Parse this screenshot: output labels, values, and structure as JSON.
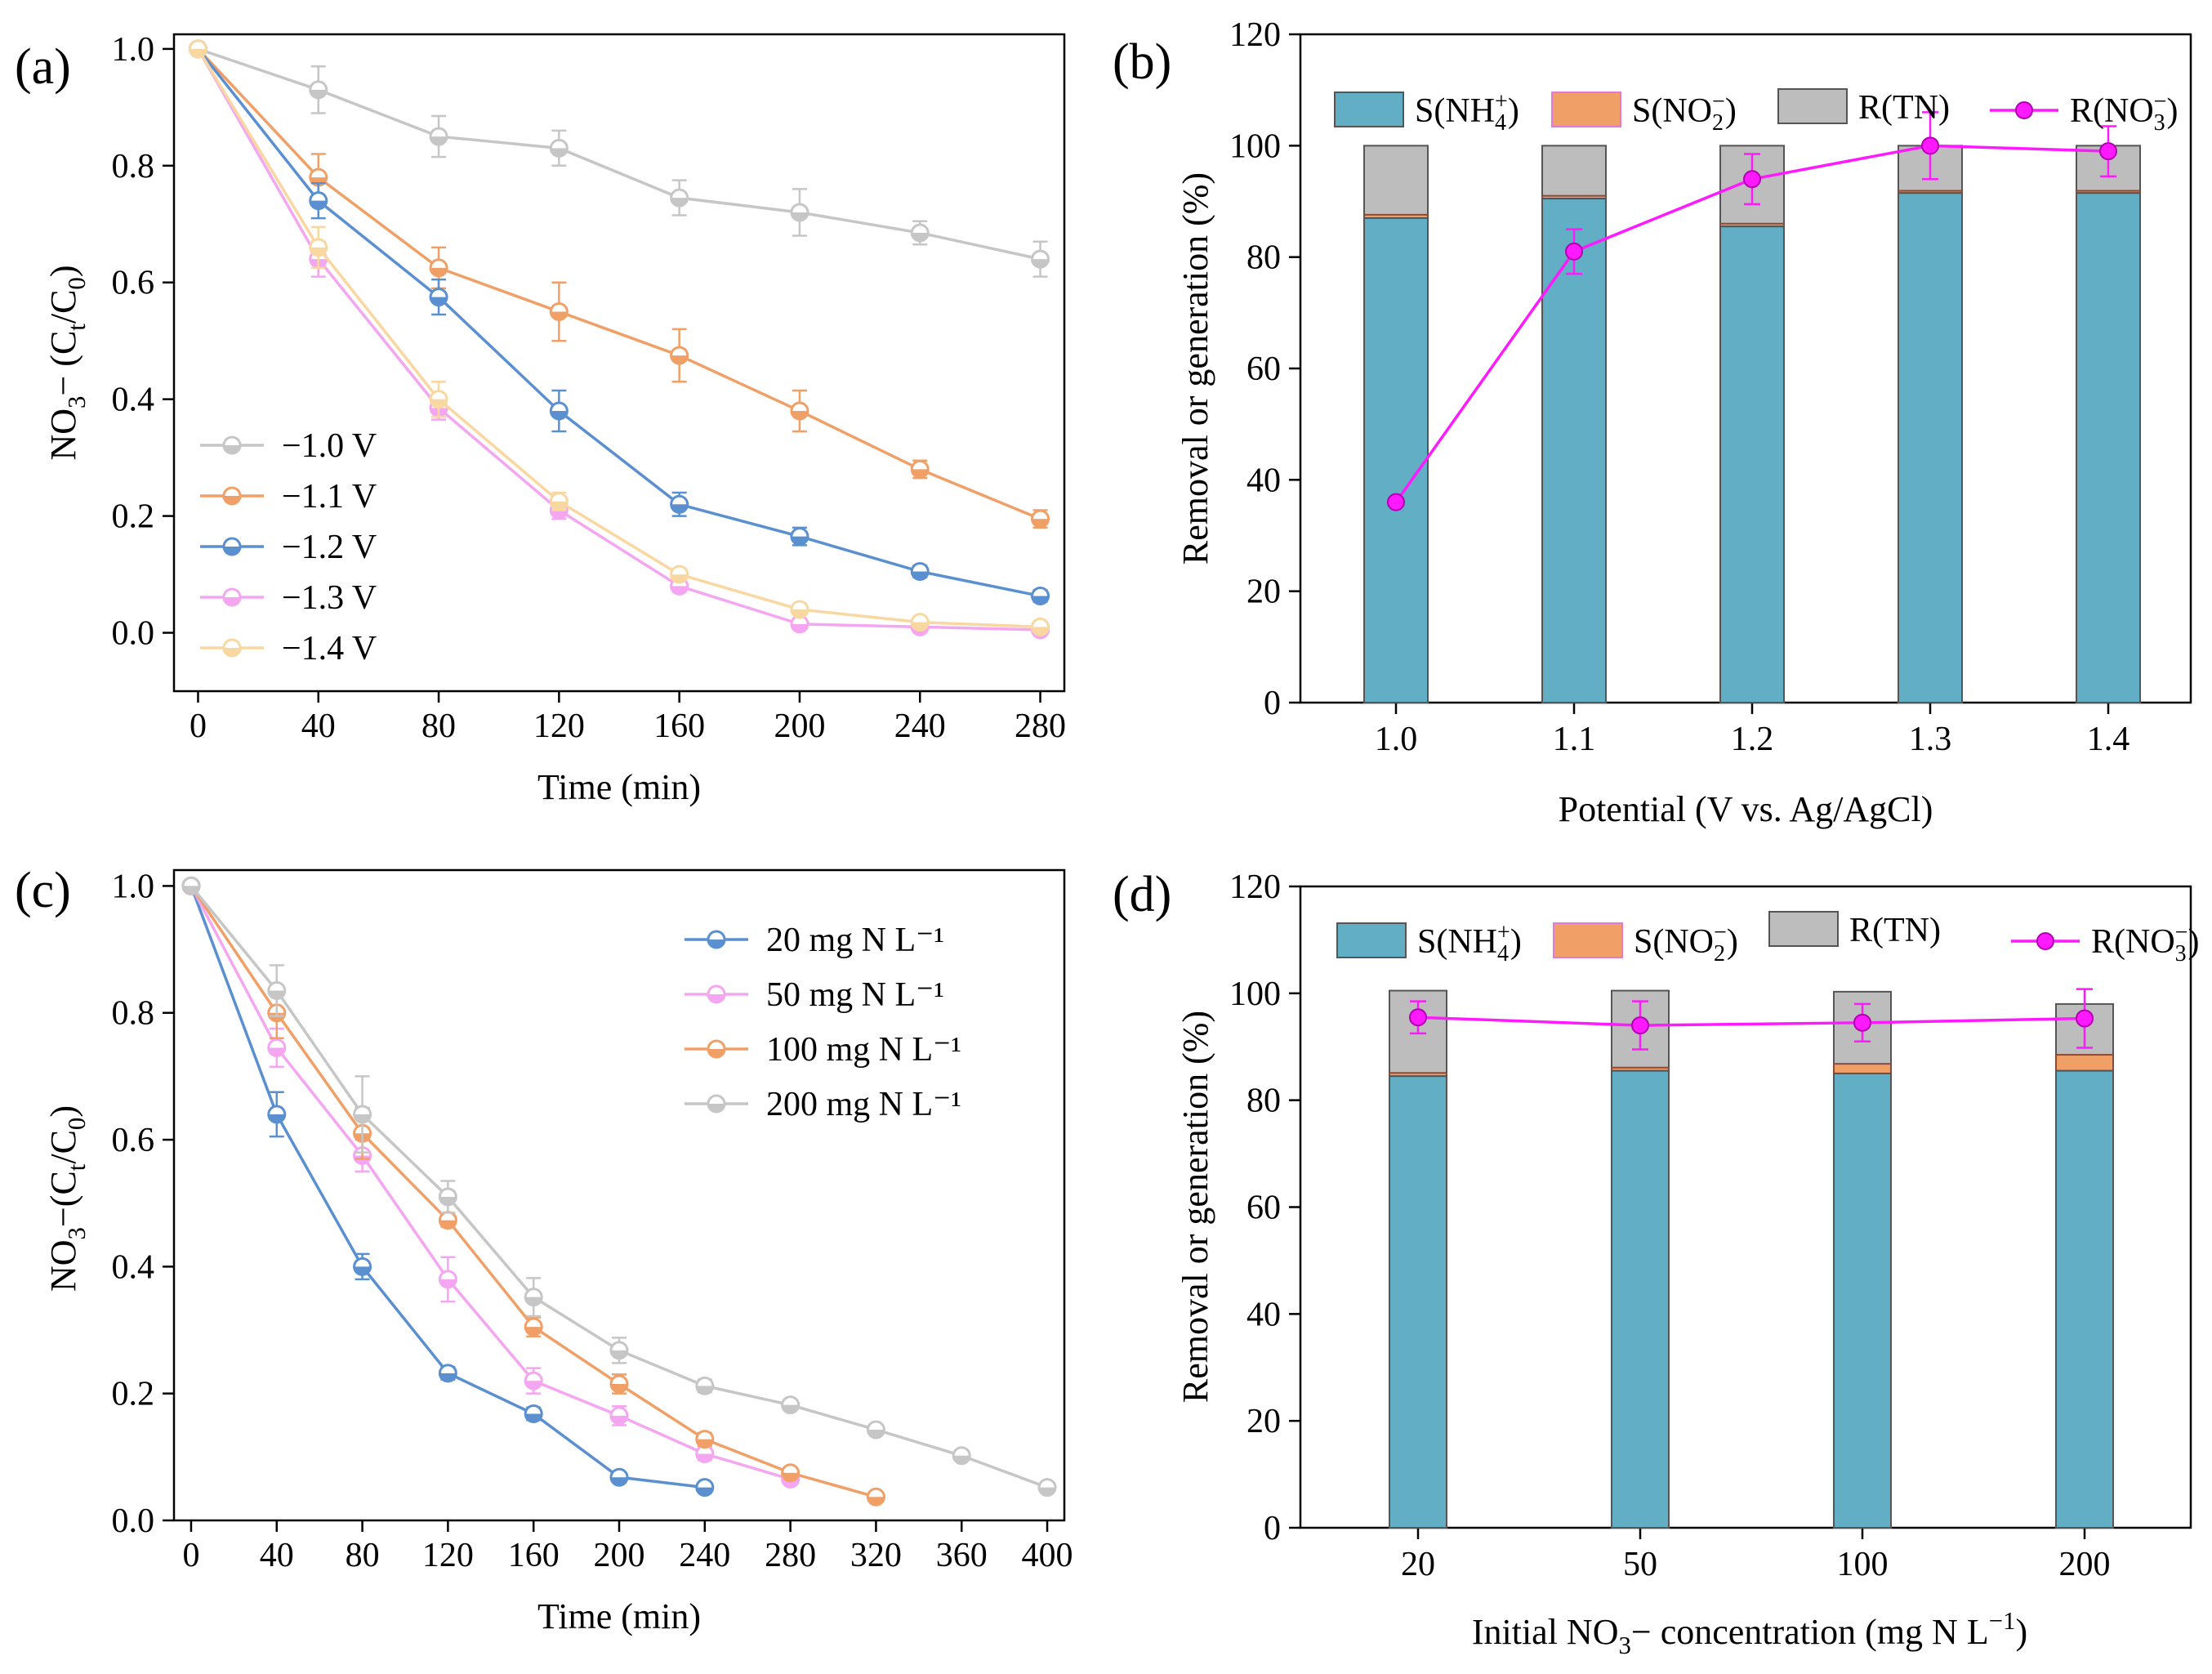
{
  "colors": {
    "gray": "#c6c6c6",
    "orange": "#f0a067",
    "blue": "#5a8fd0",
    "pink": "#f4a6f0",
    "peach": "#f9d7a0",
    "bar_nh4": "#62aec5",
    "bar_no2": "#f0a067",
    "bar_tn": "#bdbdbd",
    "line_no3": "#ff19ff"
  },
  "chart_data": [
    {
      "id": "a",
      "panel_label": "(a)",
      "type": "line",
      "xlabel": "Time (min)",
      "ylabel": "NO3⁻ (Ct/C0)",
      "xlim": [
        -8,
        288
      ],
      "ylim": [
        -0.1,
        1.025
      ],
      "xticks": [
        0,
        40,
        80,
        120,
        160,
        200,
        240,
        280
      ],
      "yticks": [
        0.0,
        0.2,
        0.4,
        0.6,
        0.8,
        1.0
      ],
      "ytick_labels": [
        "0.0",
        "0.2",
        "0.4",
        "0.6",
        "0.8",
        "1.0"
      ],
      "legend": {
        "position": "bottom-left"
      },
      "x": [
        0,
        40,
        80,
        120,
        160,
        200,
        240,
        280
      ],
      "series": [
        {
          "name": "−1.0 V",
          "color_key": "gray",
          "values": [
            1.0,
            0.93,
            0.85,
            0.83,
            0.745,
            0.72,
            0.685,
            0.64
          ],
          "err": [
            0,
            0.04,
            0.035,
            0.03,
            0.03,
            0.04,
            0.02,
            0.03
          ]
        },
        {
          "name": "−1.1 V",
          "color_key": "orange",
          "values": [
            1.0,
            0.78,
            0.625,
            0.55,
            0.475,
            0.38,
            0.28,
            0.195
          ],
          "err": [
            0,
            0.04,
            0.035,
            0.05,
            0.045,
            0.035,
            0.015,
            0.015
          ]
        },
        {
          "name": "−1.2 V",
          "color_key": "blue",
          "values": [
            1.0,
            0.74,
            0.575,
            0.38,
            0.22,
            0.165,
            0.105,
            0.063
          ],
          "err": [
            0,
            0.03,
            0.03,
            0.035,
            0.02,
            0.015,
            0.01,
            0.01
          ]
        },
        {
          "name": "−1.3 V",
          "color_key": "pink",
          "values": [
            1.0,
            0.64,
            0.385,
            0.21,
            0.08,
            0.015,
            0.01,
            0.005
          ],
          "err": [
            0,
            0.03,
            0.02,
            0.015,
            0.01,
            0.008,
            0.005,
            0.005
          ]
        },
        {
          "name": "−1.4 V",
          "color_key": "peach",
          "values": [
            1.0,
            0.66,
            0.4,
            0.225,
            0.1,
            0.04,
            0.018,
            0.01
          ],
          "err": [
            0,
            0.035,
            0.03,
            0.015,
            0.01,
            0.008,
            0.005,
            0.005
          ]
        }
      ]
    },
    {
      "id": "b",
      "panel_label": "(b)",
      "type": "bar",
      "xlabel": "Potential (V vs. Ag/AgCl)",
      "ylabel": "Removal or generation (%)",
      "ylim": [
        0,
        120
      ],
      "yticks": [
        0,
        20,
        40,
        60,
        80,
        100,
        120
      ],
      "categories": [
        "1.0",
        "1.1",
        "1.2",
        "1.3",
        "1.4"
      ],
      "legend": {
        "position": "top"
      },
      "series": [
        {
          "name": "S(NH4+)",
          "color_key": "bar_nh4",
          "values": [
            87,
            90.5,
            85.5,
            91.5,
            91.5
          ]
        },
        {
          "name": "S(NO2−)",
          "color_key": "bar_no2",
          "values": [
            0.6,
            0.5,
            0.5,
            0.4,
            0.4
          ]
        },
        {
          "name": "R(TN)",
          "color_key": "bar_tn",
          "values": [
            100,
            100,
            100,
            100,
            100
          ]
        },
        {
          "name": "R(NO3−)",
          "color_key": "line_no3",
          "values": [
            36,
            81,
            94,
            100,
            99
          ],
          "err": [
            0.5,
            4,
            4.5,
            6,
            4.5
          ]
        }
      ]
    },
    {
      "id": "c",
      "panel_label": "(c)",
      "type": "line",
      "xlabel": "Time (min)",
      "ylabel": "NO3⁻(Ct/C0)",
      "xlim": [
        -8,
        408
      ],
      "ylim": [
        0,
        1.025
      ],
      "xticks": [
        0,
        40,
        80,
        120,
        160,
        200,
        240,
        280,
        320,
        360,
        400
      ],
      "yticks": [
        0.0,
        0.2,
        0.4,
        0.6,
        0.8,
        1.0
      ],
      "ytick_labels": [
        "0.0",
        "0.2",
        "0.4",
        "0.6",
        "0.8",
        "1.0"
      ],
      "legend": {
        "position": "top-right"
      },
      "series": [
        {
          "name": "20 mg N L⁻¹",
          "color_key": "blue",
          "x": [
            0,
            40,
            80,
            120,
            160,
            200,
            240
          ],
          "values": [
            1.0,
            0.64,
            0.4,
            0.232,
            0.168,
            0.068,
            0.052
          ],
          "err": [
            0,
            0.035,
            0.02,
            0.01,
            0.01,
            0.005,
            0.005
          ]
        },
        {
          "name": "50 mg N L⁻¹",
          "color_key": "pink",
          "x": [
            0,
            40,
            80,
            120,
            160,
            200,
            240,
            280
          ],
          "values": [
            1.0,
            0.745,
            0.575,
            0.38,
            0.22,
            0.165,
            0.105,
            0.065
          ],
          "err": [
            0,
            0.03,
            0.025,
            0.035,
            0.02,
            0.015,
            0.01,
            0.005
          ]
        },
        {
          "name": "100 mg N L⁻¹",
          "color_key": "orange",
          "x": [
            0,
            40,
            80,
            120,
            160,
            200,
            240,
            280,
            320
          ],
          "values": [
            1.0,
            0.8,
            0.61,
            0.473,
            0.305,
            0.215,
            0.128,
            0.075,
            0.037
          ],
          "err": [
            0,
            0.04,
            0.04,
            0.01,
            0.015,
            0.015,
            0.01,
            0.005,
            0.005
          ]
        },
        {
          "name": "200 mg N L⁻¹",
          "color_key": "gray",
          "x": [
            0,
            40,
            80,
            120,
            160,
            200,
            240,
            280,
            320,
            360,
            400
          ],
          "values": [
            1.0,
            0.835,
            0.64,
            0.51,
            0.352,
            0.268,
            0.212,
            0.182,
            0.143,
            0.102,
            0.052
          ],
          "err": [
            0,
            0.04,
            0.06,
            0.025,
            0.03,
            0.02,
            0.01,
            0.008,
            0.008,
            0.005,
            0.005
          ]
        }
      ]
    },
    {
      "id": "d",
      "panel_label": "(d)",
      "type": "bar",
      "xlabel": "Initial NO3⁻ concentration (mg N L⁻¹)",
      "ylabel": "Removal or generation (%)",
      "ylim": [
        0,
        120
      ],
      "yticks": [
        0,
        20,
        40,
        60,
        80,
        100,
        120
      ],
      "categories": [
        "20",
        "50",
        "100",
        "200"
      ],
      "legend": {
        "position": "top"
      },
      "series": [
        {
          "name": "S(NH4+)",
          "color_key": "bar_nh4",
          "values": [
            84.5,
            85.5,
            85,
            85.5
          ]
        },
        {
          "name": "S(NO2−)",
          "color_key": "bar_no2",
          "values": [
            0.6,
            0.6,
            1.8,
            3
          ]
        },
        {
          "name": "R(TN)",
          "color_key": "bar_tn",
          "values": [
            100.5,
            100.5,
            100.3,
            98
          ]
        },
        {
          "name": "R(NO3−)",
          "color_key": "line_no3",
          "values": [
            95.5,
            94,
            94.5,
            95.3
          ],
          "err": [
            3,
            4.5,
            3.5,
            5.5
          ]
        }
      ]
    }
  ]
}
